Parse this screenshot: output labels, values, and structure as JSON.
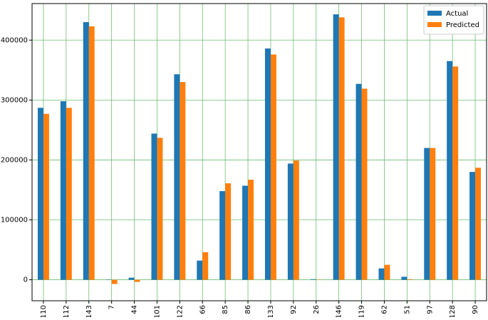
{
  "chart_data": {
    "type": "bar",
    "categories": [
      "110",
      "112",
      "143",
      "7",
      "44",
      "101",
      "122",
      "66",
      "85",
      "86",
      "133",
      "92",
      "26",
      "146",
      "119",
      "62",
      "51",
      "97",
      "128",
      "90"
    ],
    "series": [
      {
        "name": "Actual",
        "color": "#1f77b4",
        "values": [
          287000,
          298000,
          430000,
          500,
          3500,
          244000,
          343000,
          32000,
          148000,
          157000,
          386000,
          194000,
          1000,
          443000,
          327000,
          19000,
          5000,
          220000,
          365000,
          180000
        ]
      },
      {
        "name": "Predicted",
        "color": "#ff7f0e",
        "values": [
          277000,
          287000,
          423000,
          -7000,
          -3500,
          237000,
          330000,
          46000,
          161000,
          167000,
          376000,
          199000,
          -500,
          438000,
          319000,
          25000,
          1000,
          220000,
          356000,
          187000
        ]
      }
    ],
    "ylim": [
      -35000,
      461000
    ],
    "yticks": [
      0,
      100000,
      200000,
      300000,
      400000
    ],
    "grid": true,
    "grid_color": "#4caf50",
    "legend": "upper right"
  }
}
